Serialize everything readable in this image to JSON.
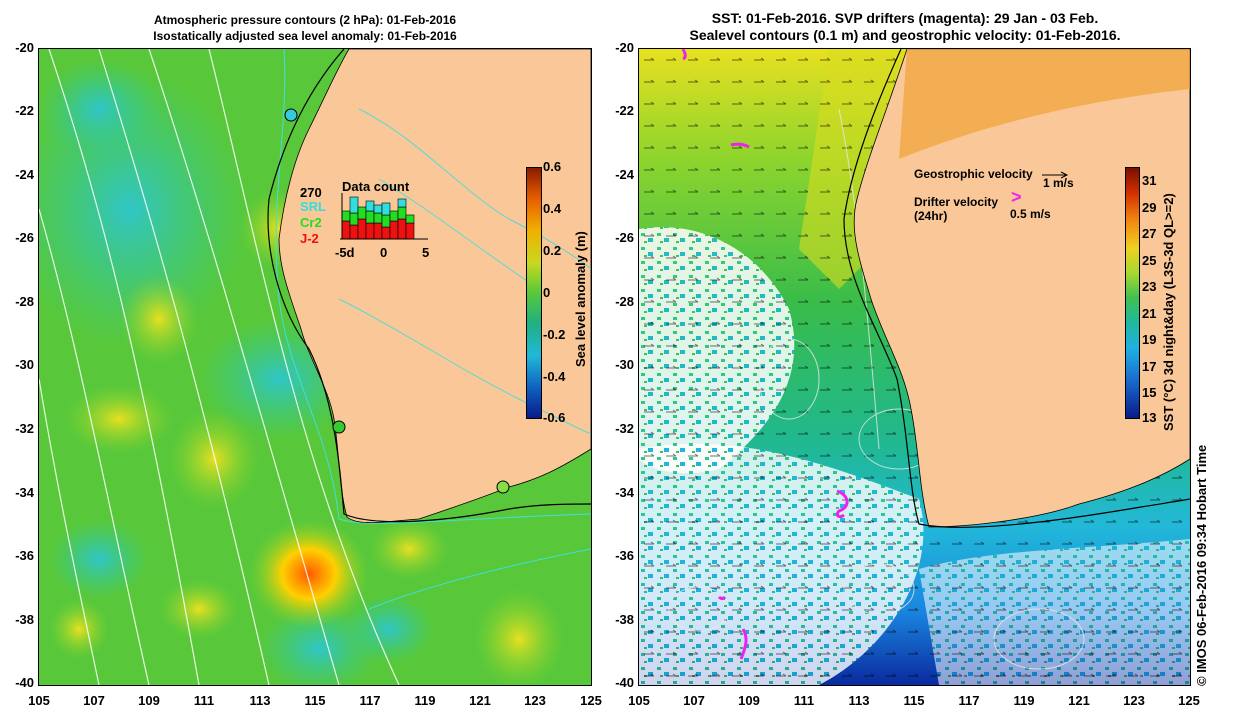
{
  "left_panel": {
    "title_line1": "Atmospheric pressure contours (2 hPa): 01-Feb-2016",
    "title_line2": "Isostatically adjusted sea level anomaly: 01-Feb-2016",
    "colorbar_title": "Sea level anomaly (m)",
    "colorbar_ticks": [
      "0.6",
      "0.4",
      "0.2",
      "0",
      "-0.2",
      "-0.4",
      "-0.6"
    ],
    "data_count": {
      "title": "Data count",
      "count": "270",
      "legend": [
        "SRL",
        "Cr2",
        "J-2"
      ],
      "legend_colors": [
        "#33dddd",
        "#22dd22",
        "#ee1111"
      ],
      "x_ticks": [
        "-5d",
        "0",
        "5"
      ]
    }
  },
  "right_panel": {
    "title_line1": "SST: 01-Feb-2016. SVP drifters (magenta): 29 Jan - 03 Feb.",
    "title_line2": "Sealevel contours (0.1 m) and geostrophic velocity: 01-Feb-2016.",
    "legend_geo": "Geostrophic velocity",
    "legend_geo_scale": "1 m/s",
    "legend_drifter_1": "Drifter velocity",
    "legend_drifter_2": "(24hr)",
    "legend_drifter_scale": "0.5 m/s",
    "drifter_marker": ">",
    "colorbar_title": "SST (°C) 3d night&day (L3S-3d QL>=2)",
    "colorbar_ticks": [
      "31",
      "29",
      "27",
      "25",
      "23",
      "21",
      "19",
      "17",
      "15",
      "13"
    ]
  },
  "axes": {
    "y_labels": [
      "-20",
      "-22",
      "-24",
      "-26",
      "-28",
      "-30",
      "-32",
      "-34",
      "-36",
      "-38",
      "-40"
    ],
    "x_labels": [
      "105",
      "107",
      "109",
      "111",
      "113",
      "115",
      "117",
      "119",
      "121",
      "123",
      "125"
    ]
  },
  "credit": "© IMOS 06-Feb-2016 09:34 Hobart Time",
  "colors": {
    "land": "#fac898",
    "sla_ocean": "#58c83a",
    "sst_ocean": "#3cc05a",
    "drifter": "#ee22ee"
  }
}
